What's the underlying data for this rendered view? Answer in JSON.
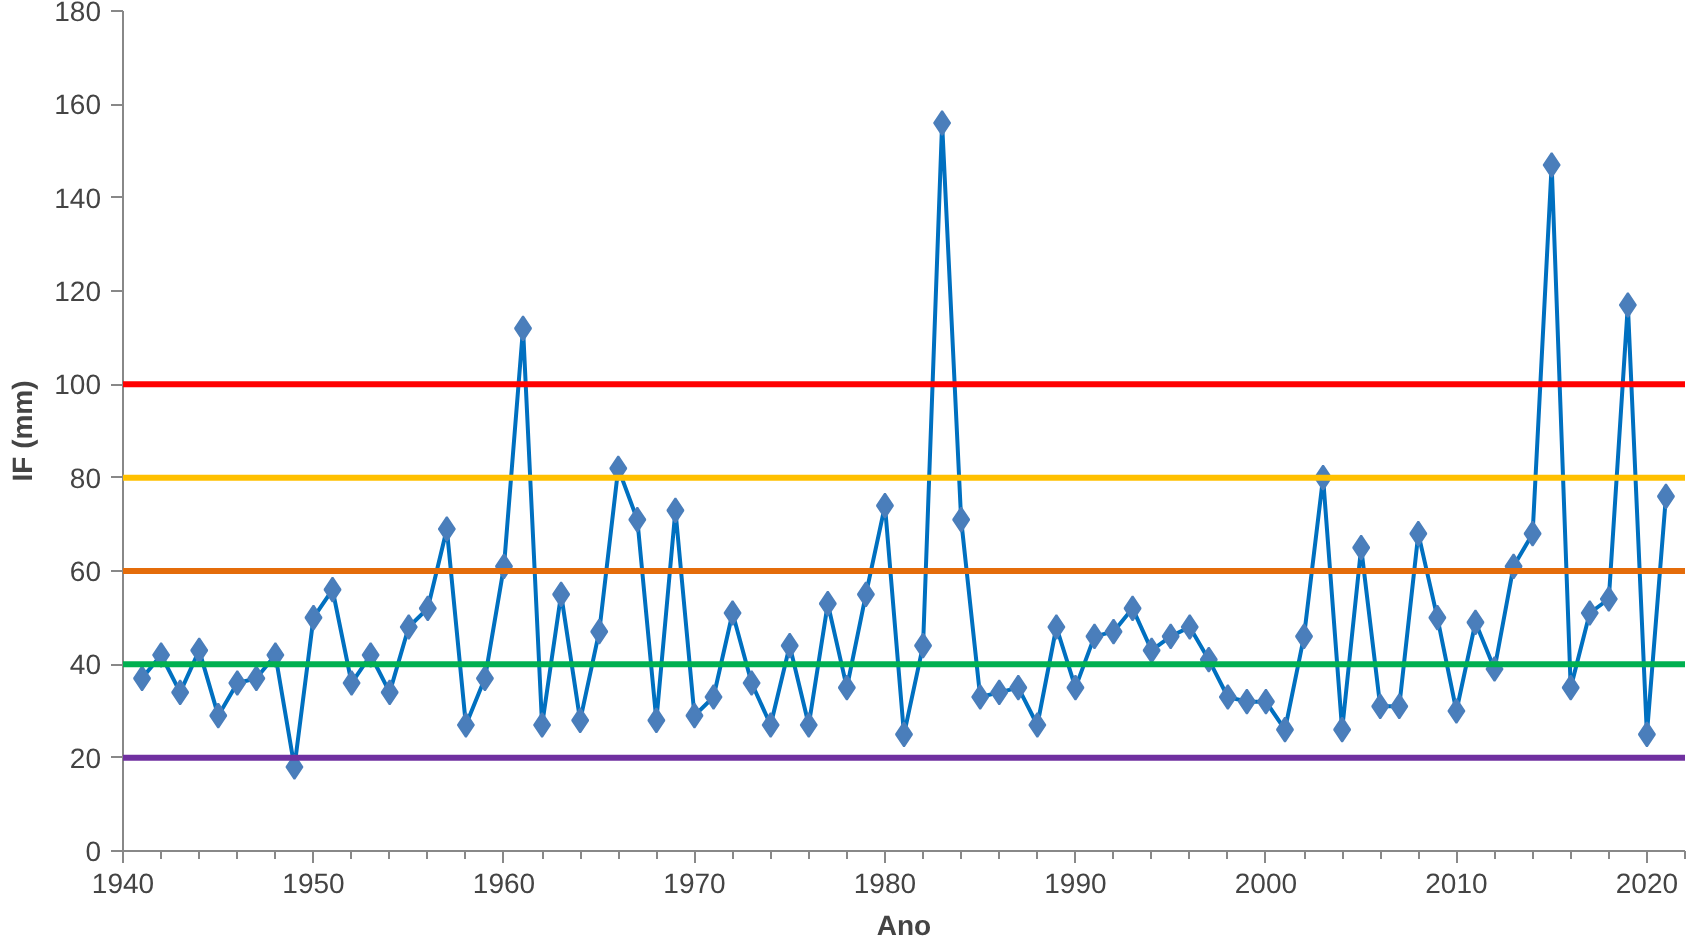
{
  "chart_data": {
    "type": "line",
    "xlabel": "Ano",
    "ylabel": "IF (mm)",
    "x": [
      1941,
      1942,
      1943,
      1944,
      1945,
      1946,
      1947,
      1948,
      1949,
      1950,
      1951,
      1952,
      1953,
      1954,
      1955,
      1956,
      1957,
      1958,
      1959,
      1960,
      1961,
      1962,
      1963,
      1964,
      1965,
      1966,
      1967,
      1968,
      1969,
      1970,
      1971,
      1972,
      1973,
      1974,
      1975,
      1976,
      1977,
      1978,
      1979,
      1980,
      1981,
      1982,
      1983,
      1984,
      1985,
      1986,
      1987,
      1988,
      1989,
      1990,
      1991,
      1992,
      1993,
      1994,
      1995,
      1996,
      1997,
      1998,
      1999,
      2000,
      2001,
      2002,
      2003,
      2004,
      2005,
      2006,
      2007,
      2008,
      2009,
      2010,
      2011,
      2012,
      2013,
      2014,
      2015,
      2016,
      2017,
      2018,
      2019,
      2020,
      2021
    ],
    "series": [
      {
        "color": "#0070c0",
        "values": [
          37,
          42,
          34,
          43,
          29,
          36,
          37,
          42,
          18,
          50,
          56,
          36,
          42,
          34,
          48,
          52,
          69,
          27,
          37,
          61,
          112,
          27,
          55,
          28,
          47,
          82,
          71,
          28,
          73,
          29,
          33,
          51,
          36,
          27,
          44,
          27,
          53,
          35,
          55,
          74,
          25,
          44,
          156,
          71,
          33,
          34,
          35,
          27,
          48,
          35,
          46,
          47,
          52,
          43,
          46,
          48,
          41,
          33,
          32,
          32,
          26,
          46,
          80,
          26,
          65,
          31,
          31,
          68,
          50,
          30,
          49,
          39,
          61,
          68,
          147,
          35,
          51,
          54,
          117,
          25,
          76
        ]
      }
    ],
    "marker": "diamond",
    "grid": false,
    "xlim": [
      1940,
      2022
    ],
    "xticks": [
      1940,
      1950,
      1960,
      1970,
      1980,
      1990,
      2000,
      2010,
      2020
    ],
    "ylim": [
      0,
      180
    ],
    "yticks": [
      0,
      20,
      40,
      60,
      80,
      100,
      120,
      140,
      160,
      180
    ],
    "ref_lines": [
      {
        "axis": "y",
        "value": 100,
        "color": "#ff0000"
      },
      {
        "axis": "y",
        "value": 80,
        "color": "#ffc000"
      },
      {
        "axis": "y",
        "value": 60,
        "color": "#e46c0a"
      },
      {
        "axis": "y",
        "value": 40,
        "color": "#00b050"
      },
      {
        "axis": "y",
        "value": 20,
        "color": "#7030a0"
      }
    ]
  }
}
